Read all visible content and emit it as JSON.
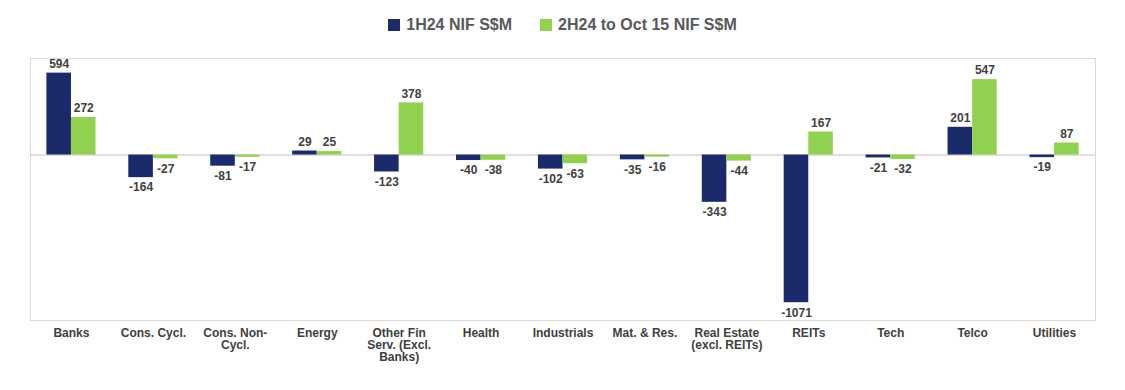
{
  "chart_data": {
    "type": "bar",
    "categories": [
      "Banks",
      "Cons. Cycl.",
      "Cons. Non-Cycl.",
      "Energy",
      "Other Fin Serv. (Excl. Banks)",
      "Health",
      "Industrials",
      "Mat. & Res.",
      "Real Estate (excl. REITs)",
      "REITs",
      "Tech",
      "Telco",
      "Utilities"
    ],
    "series": [
      {
        "name": "1H24 NIF S$M",
        "color": "#1b2a6b",
        "values": [
          594,
          -164,
          -81,
          29,
          -123,
          -40,
          -102,
          -35,
          -343,
          -1071,
          -21,
          201,
          -19
        ]
      },
      {
        "name": "2H24 to Oct 15 NIF S$M",
        "color": "#92d050",
        "values": [
          272,
          -27,
          -17,
          25,
          378,
          -38,
          -63,
          -16,
          -44,
          167,
          -32,
          547,
          87
        ]
      }
    ],
    "ylim": [
      -1200,
      700
    ],
    "yticks": [
      0
    ],
    "grid": false,
    "legend": "top",
    "data_labels": true,
    "tick_labels": "x"
  }
}
